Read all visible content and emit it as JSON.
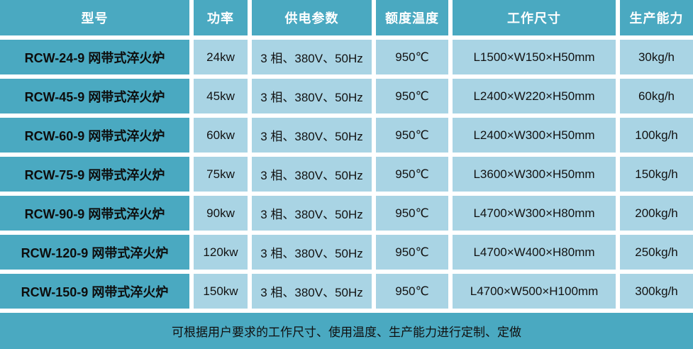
{
  "colors": {
    "teal_bg": "#4aa9c1",
    "light_blue_cell_bg": "#a9d4e4",
    "header_text": "#ffffff",
    "body_text": "#121212",
    "gap_white": "#ffffff"
  },
  "table": {
    "headers": [
      "型号",
      "功率",
      "供电参数",
      "额度温度",
      "工作尺寸",
      "生产能力"
    ],
    "rows": [
      {
        "model": "RCW-24-9 网带式淬火炉",
        "power": "24kw",
        "supply": "3 相、380V、50Hz",
        "temp": "950℃",
        "size": "L1500×W150×H50mm",
        "capacity": "30kg/h"
      },
      {
        "model": "RCW-45-9 网带式淬火炉",
        "power": "45kw",
        "supply": "3 相、380V、50Hz",
        "temp": "950℃",
        "size": "L2400×W220×H50mm",
        "capacity": "60kg/h"
      },
      {
        "model": "RCW-60-9 网带式淬火炉",
        "power": "60kw",
        "supply": "3 相、380V、50Hz",
        "temp": "950℃",
        "size": "L2400×W300×H50mm",
        "capacity": "100kg/h"
      },
      {
        "model": "RCW-75-9 网带式淬火炉",
        "power": "75kw",
        "supply": "3 相、380V、50Hz",
        "temp": "950℃",
        "size": "L3600×W300×H50mm",
        "capacity": "150kg/h"
      },
      {
        "model": "RCW-90-9 网带式淬火炉",
        "power": "90kw",
        "supply": "3 相、380V、50Hz",
        "temp": "950℃",
        "size": "L4700×W300×H80mm",
        "capacity": "200kg/h"
      },
      {
        "model": "RCW-120-9 网带式淬火炉",
        "power": "120kw",
        "supply": "3 相、380V、50Hz",
        "temp": "950℃",
        "size": "L4700×W400×H80mm",
        "capacity": "250kg/h"
      },
      {
        "model": "RCW-150-9 网带式淬火炉",
        "power": "150kw",
        "supply": "3 相、380V、50Hz",
        "temp": "950℃",
        "size": "L4700×W500×H100mm",
        "capacity": "300kg/h"
      }
    ],
    "footer_note": "可根据用户要求的工作尺寸、使用温度、生产能力进行定制、定做"
  }
}
